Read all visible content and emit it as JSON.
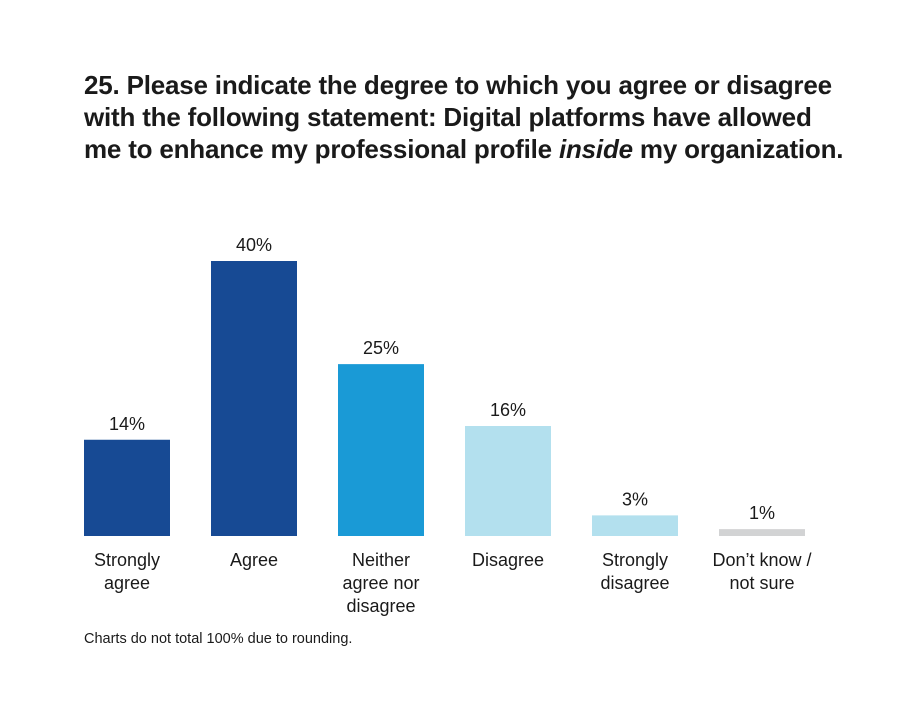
{
  "title": {
    "before": "25. Please indicate the degree to which you agree or disagree with the following statement: Digital platforms have allowed me to enhance my professional profile ",
    "emphasis": "inside",
    "after": " my organization."
  },
  "footnote": "Charts do not total 100% due to rounding.",
  "chart_data": {
    "type": "bar",
    "categories": [
      [
        "Strongly",
        "agree"
      ],
      [
        "Agree"
      ],
      [
        "Neither",
        "agree nor",
        "disagree"
      ],
      [
        "Disagree"
      ],
      [
        "Strongly",
        "disagree"
      ],
      [
        "Don’t know /",
        "not sure"
      ]
    ],
    "values": [
      14,
      40,
      25,
      16,
      3,
      1
    ],
    "value_labels": [
      "14%",
      "40%",
      "25%",
      "16%",
      "3%",
      "1%"
    ],
    "colors": [
      "#174a94",
      "#174a94",
      "#1a9ad6",
      "#b3e0ee",
      "#b3e0ee",
      "#d2d3d4"
    ],
    "ylim": [
      0,
      40
    ],
    "grid": false
  }
}
